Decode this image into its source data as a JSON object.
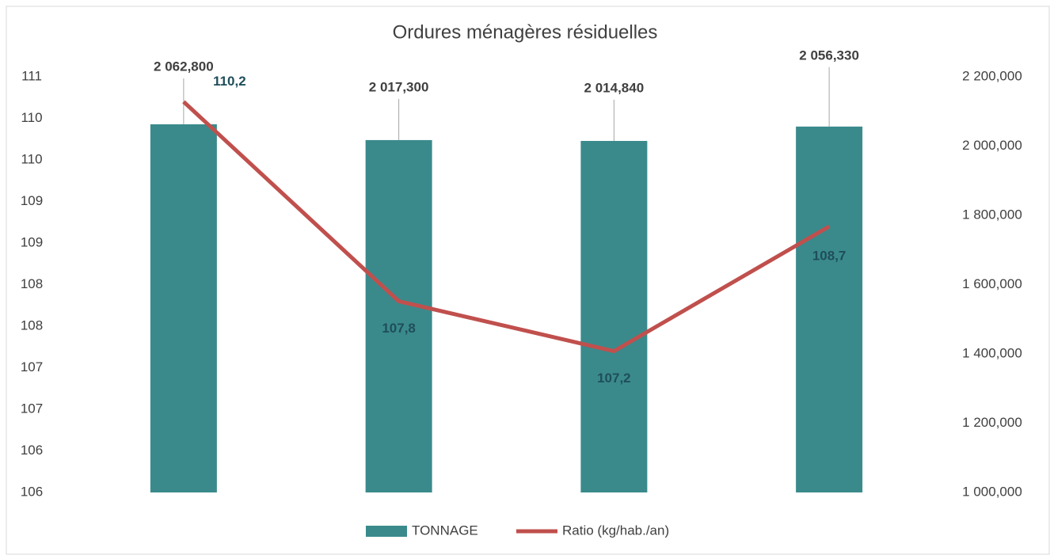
{
  "chart_data": {
    "type": "bar_line",
    "title": "Ordures ménagères résiduelles",
    "categories": [
      null,
      null,
      null,
      null
    ],
    "series": [
      {
        "name": "TONNAGE",
        "type": "bar",
        "axis": "y2",
        "color": "#3a8a8c",
        "values": [
          2062800,
          2017300,
          2014840,
          2056330
        ],
        "value_labels": [
          "2 062,800",
          "2 017,300",
          "2 014,840",
          "2 056,330"
        ]
      },
      {
        "name": "Ratio (kg/hab./an)",
        "type": "line",
        "axis": "y",
        "color": "#c0504d",
        "values": [
          110.2,
          107.8,
          107.2,
          108.7
        ],
        "value_labels": [
          "110,2",
          "107,8",
          "107,2",
          "108,7"
        ]
      }
    ],
    "ylim": [
      105.5,
      110.5
    ],
    "yticks": [
      {
        "value": 105.5,
        "label": "106"
      },
      106,
      {
        "value": 106.5,
        "label": "107"
      },
      107,
      {
        "value": 107.5,
        "label": "108"
      },
      108,
      {
        "value": 108.5,
        "label": "109"
      },
      109,
      {
        "value": 109.5,
        "label": "110"
      },
      110,
      {
        "value": 110.5,
        "label": "111"
      }
    ],
    "y2lim": [
      1000000,
      2200000
    ],
    "y2ticks": [
      {
        "value": 1000000,
        "label": "1 000,000"
      },
      {
        "value": 1200000,
        "label": "1 200,000"
      },
      {
        "value": 1400000,
        "label": "1 400,000"
      },
      {
        "value": 1600000,
        "label": "1 600,000"
      },
      {
        "value": 1800000,
        "label": "1 800,000"
      },
      {
        "value": 2000000,
        "label": "2 000,000"
      },
      {
        "value": 2200000,
        "label": "2 200,000"
      }
    ],
    "legend": "bottom"
  }
}
